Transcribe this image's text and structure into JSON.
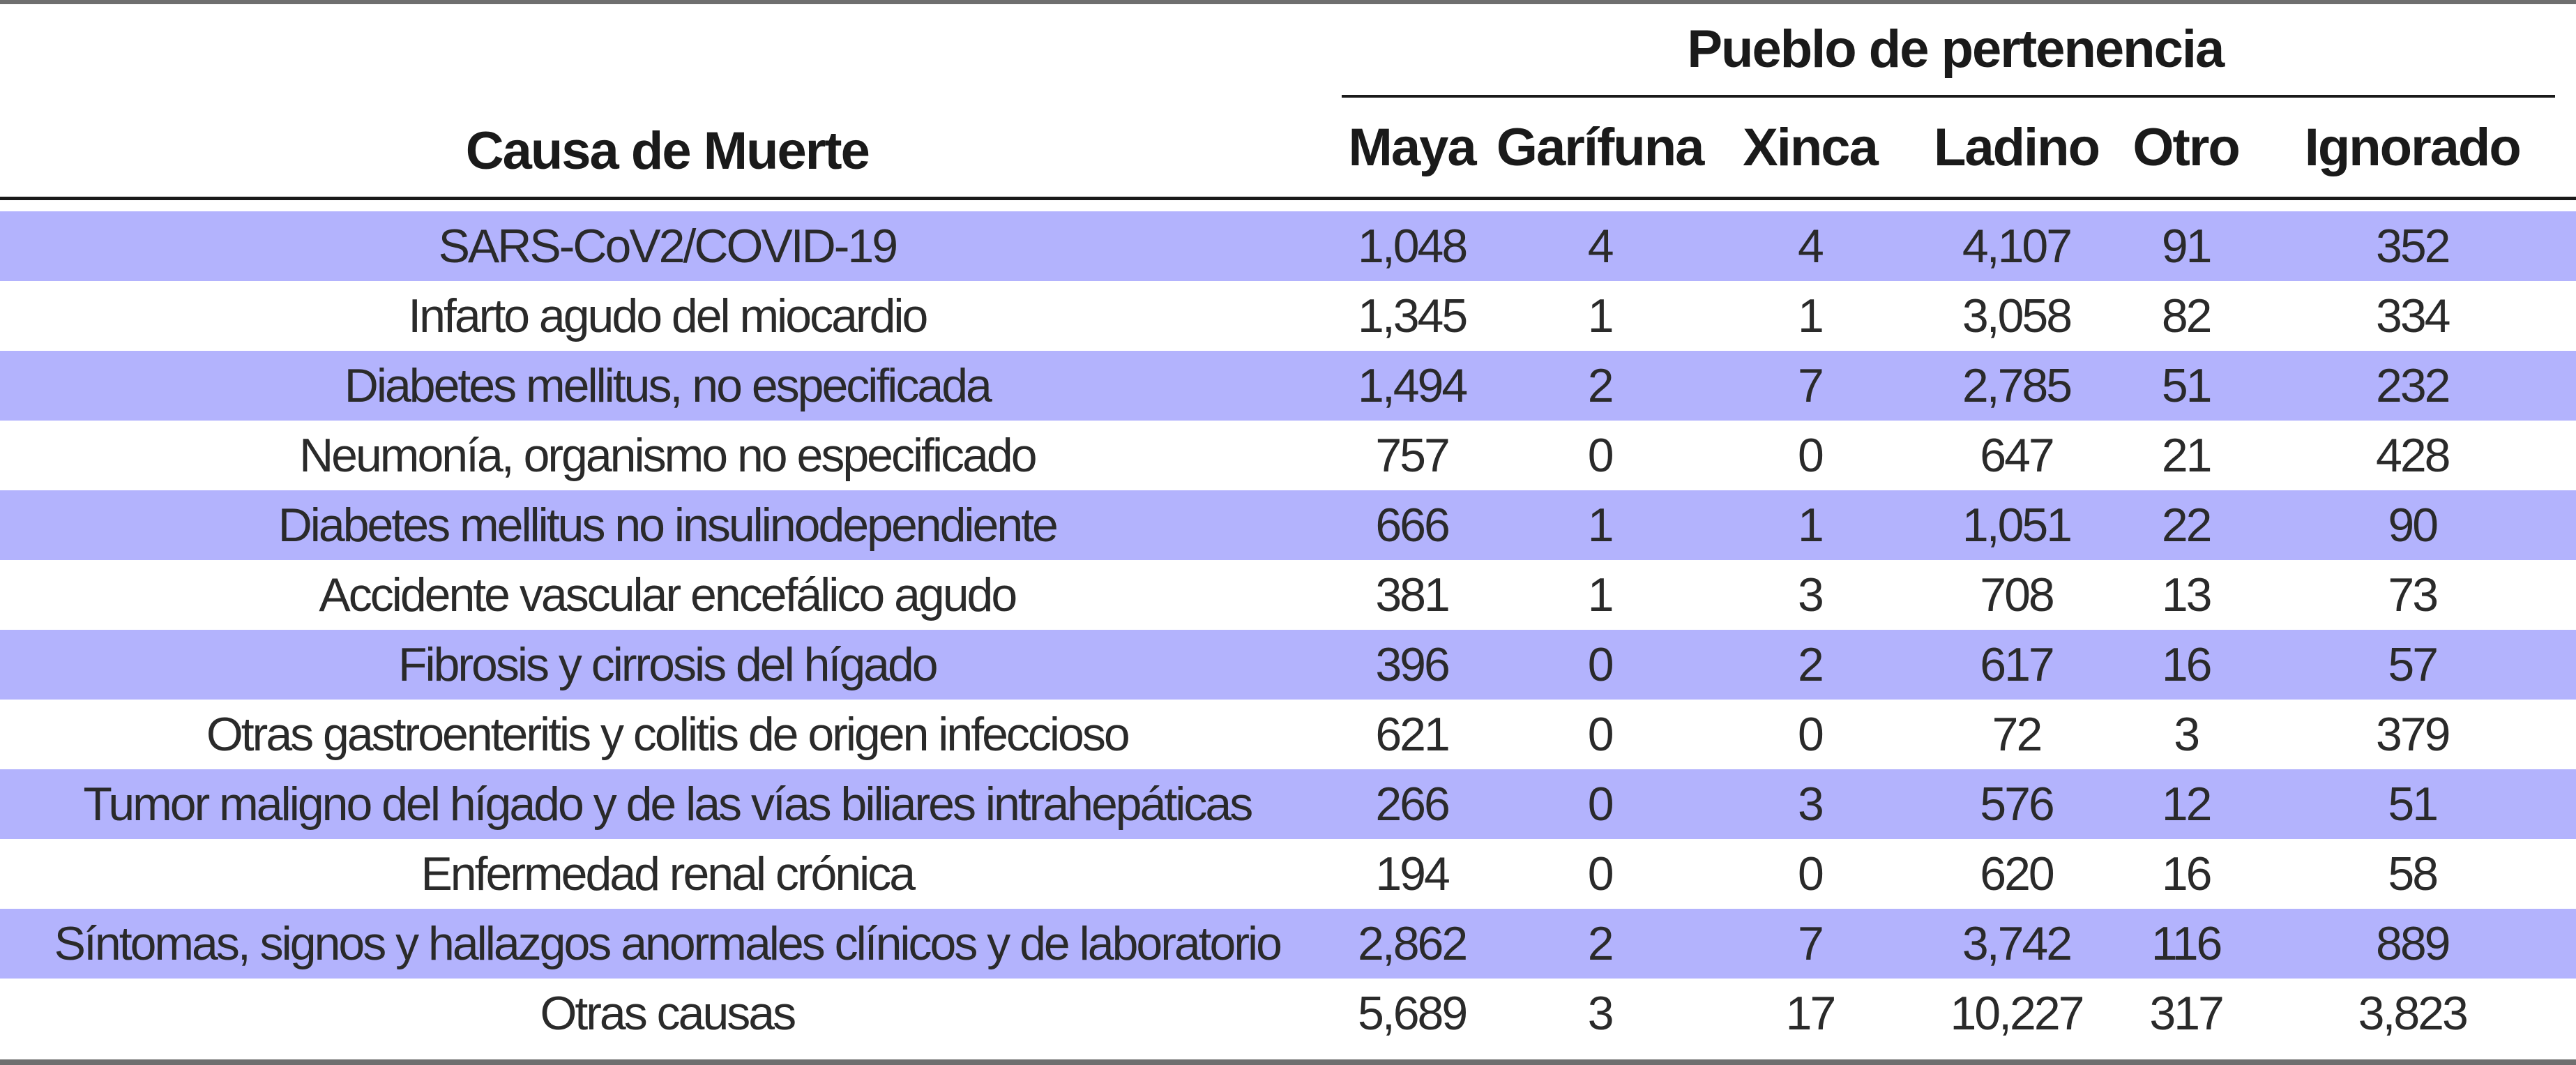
{
  "table": {
    "group_header": "Pueblo de pertenencia",
    "cause_header": "Causa de Muerte",
    "columns": [
      "Maya",
      "Garífuna",
      "Xinca",
      "Ladino",
      "Otro",
      "Ignorado"
    ],
    "rows": [
      {
        "cause": "SARS-CoV2/COVID-19",
        "values": [
          "1,048",
          "4",
          "4",
          "4,107",
          "91",
          "352"
        ]
      },
      {
        "cause": "Infarto agudo del miocardio",
        "values": [
          "1,345",
          "1",
          "1",
          "3,058",
          "82",
          "334"
        ]
      },
      {
        "cause": "Diabetes mellitus, no especificada",
        "values": [
          "1,494",
          "2",
          "7",
          "2,785",
          "51",
          "232"
        ]
      },
      {
        "cause": "Neumonía, organismo no especificado",
        "values": [
          "757",
          "0",
          "0",
          "647",
          "21",
          "428"
        ]
      },
      {
        "cause": "Diabetes mellitus no insulinodependiente",
        "values": [
          "666",
          "1",
          "1",
          "1,051",
          "22",
          "90"
        ]
      },
      {
        "cause": "Accidente vascular encefálico agudo",
        "values": [
          "381",
          "1",
          "3",
          "708",
          "13",
          "73"
        ]
      },
      {
        "cause": "Fibrosis y cirrosis del hígado",
        "values": [
          "396",
          "0",
          "2",
          "617",
          "16",
          "57"
        ]
      },
      {
        "cause": "Otras gastroenteritis y colitis de origen infeccioso",
        "values": [
          "621",
          "0",
          "0",
          "72",
          "3",
          "379"
        ]
      },
      {
        "cause": "Tumor maligno del hígado y de las vías biliares intrahepáticas",
        "values": [
          "266",
          "0",
          "3",
          "576",
          "12",
          "51"
        ]
      },
      {
        "cause": "Enfermedad renal crónica",
        "values": [
          "194",
          "0",
          "0",
          "620",
          "16",
          "58"
        ]
      },
      {
        "cause": "Síntomas, signos y hallazgos anormales clínicos y de laboratorio",
        "values": [
          "2,862",
          "2",
          "7",
          "3,742",
          "116",
          "889"
        ]
      },
      {
        "cause": "Otras causas",
        "values": [
          "5,689",
          "3",
          "17",
          "10,227",
          "317",
          "3,823"
        ]
      }
    ]
  },
  "colors": {
    "band": "#b3b3fd",
    "rule": "#1a1a1a",
    "frame": "#6f6f6f"
  }
}
